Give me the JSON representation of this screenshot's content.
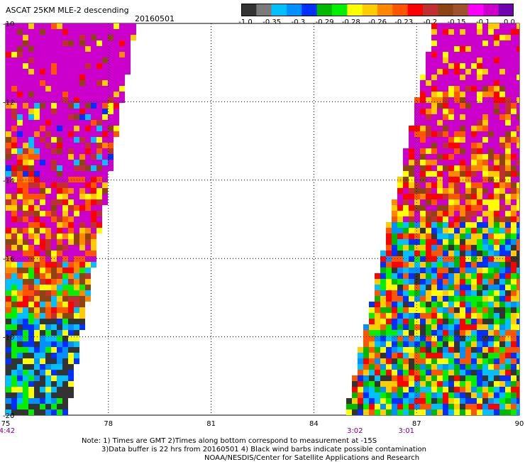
{
  "header": {
    "title": "ASCAT 25KM MLE-2 descending",
    "date": "20160501"
  },
  "colorbar": {
    "colors": [
      "#333333",
      "#7a7a7a",
      "#00c0ff",
      "#0090ff",
      "#0030ff",
      "#00b800",
      "#00f000",
      "#ffff00",
      "#ffcc00",
      "#ff8800",
      "#ff5500",
      "#ff0000",
      "#c03030",
      "#8b4513",
      "#a0522d",
      "#ff00ff",
      "#cc00cc",
      "#7000b0"
    ],
    "tick_labels": [
      "-1.0",
      "-0.35",
      "-0.3",
      "-0.29",
      "-0.28",
      "-0.26",
      "-0.23",
      "-0.2",
      "-0.15",
      "-0.1",
      "0.0"
    ]
  },
  "chart_data": {
    "type": "heatmap",
    "title": "ASCAT 25KM MLE-2 descending",
    "subtitle": "20160501",
    "x_axis": {
      "range": [
        75,
        90
      ],
      "ticks": [
        "75",
        "78",
        "81",
        "84",
        "87",
        "90"
      ]
    },
    "y_axis": {
      "range": [
        -20,
        -10
      ],
      "ticks": [
        "-10",
        "-12",
        "-14",
        "-16",
        "-18",
        "-20"
      ]
    },
    "grid": true,
    "time_labels": [
      {
        "x": 75,
        "label": "4:42"
      },
      {
        "x": 85.2,
        "label": "3:02"
      },
      {
        "x": 86.7,
        "label": "3:01"
      }
    ],
    "swaths": [
      {
        "lon_left_top": 75.0,
        "lon_right_top": 78.8,
        "lon_left_bottom": 75.0,
        "lon_right_bottom": 76.8
      },
      {
        "lon_left_top": 87.5,
        "lon_right_top": 90.0,
        "lon_left_bottom": 84.9,
        "lon_right_bottom": 90.0
      }
    ]
  },
  "footer": {
    "line1": "Note: 1) Times are GMT 2)Times along bottom correspond to measurement at -15S",
    "line2": "3)Data buffer is 22 hrs from 20160501 4) Black wind barbs indicate possible contamination",
    "line3": "NOAA/NESDIS/Center for Satellite Applications and Research"
  }
}
